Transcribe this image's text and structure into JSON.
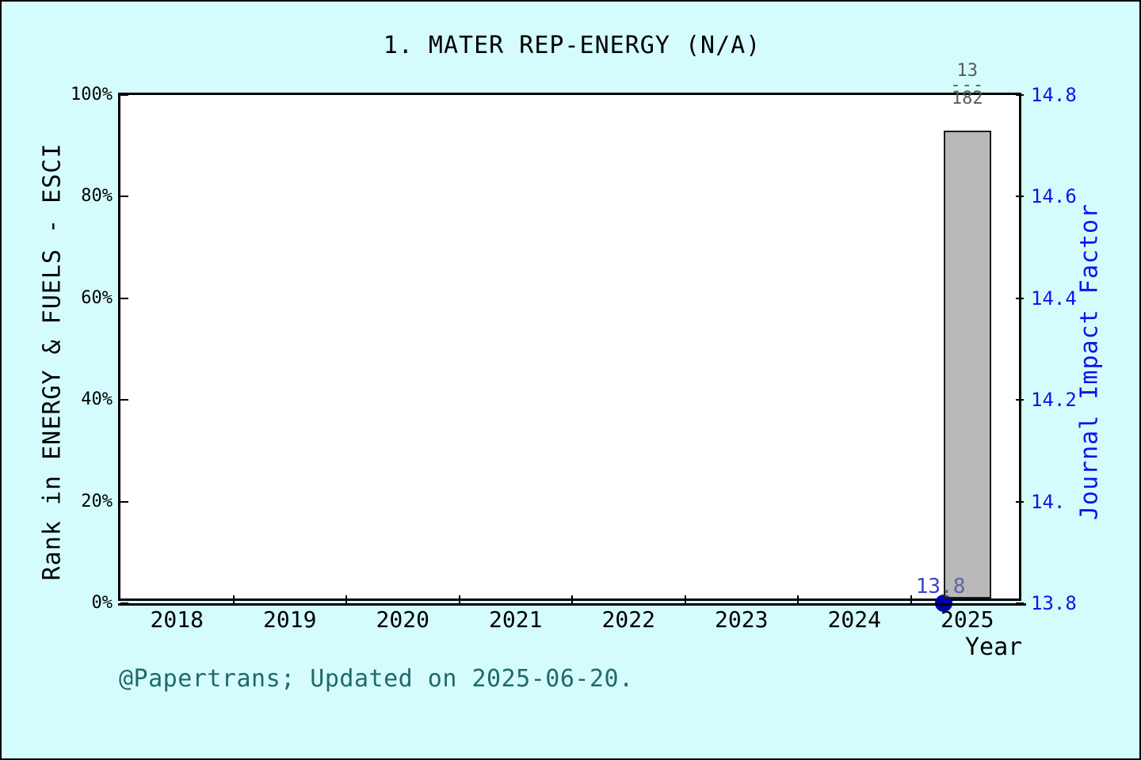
{
  "footer": "@Papertrans; Updated on 2025-06-20.",
  "colors": {
    "background": "#d5fcfc",
    "plot_bg": "#ffffff",
    "axis_black": "#000000",
    "bar_fill_rgba": "rgba(128,128,128,0.55)",
    "bar_border": "#1c1c1c",
    "point_navy": "#0000a6",
    "jif_blue": "#1111ee",
    "data_label_blue": "#3644cc",
    "fraction_gray": "#5a5a5a",
    "footer_teal": "#1e6a6a"
  },
  "chart_data": {
    "type": "bar",
    "title": "1. MATER REP-ENERGY (N/A)",
    "xlabel": "Year",
    "x_years": [
      "2018",
      "2019",
      "2020",
      "2021",
      "2022",
      "2023",
      "2024",
      "2025"
    ],
    "grid": false,
    "left_axis": {
      "label": "Rank in ENERGY & FUELS - ESCI",
      "tick_labels_top_to_bottom": [
        "100%",
        "80%",
        "60%",
        "40%",
        "20%",
        "0%"
      ],
      "range_percent": [
        0,
        100
      ]
    },
    "right_axis": {
      "label": "Journal Impact Factor",
      "tick_labels_top_to_bottom": [
        "14.8",
        "14.6",
        "14.4",
        "14.2",
        "14.",
        "13.8"
      ],
      "range": [
        13.8,
        14.8
      ]
    },
    "rank_bar": {
      "year": "2025",
      "rank": 13,
      "total": 182,
      "percentile_percent": 92.9,
      "numerator_label": "13",
      "divider": "---",
      "denominator_label": "182"
    },
    "jif_series": {
      "name": "Journal Impact Factor",
      "points": [
        {
          "year": "2025",
          "value": 13.8,
          "label": "13.8"
        }
      ]
    }
  }
}
